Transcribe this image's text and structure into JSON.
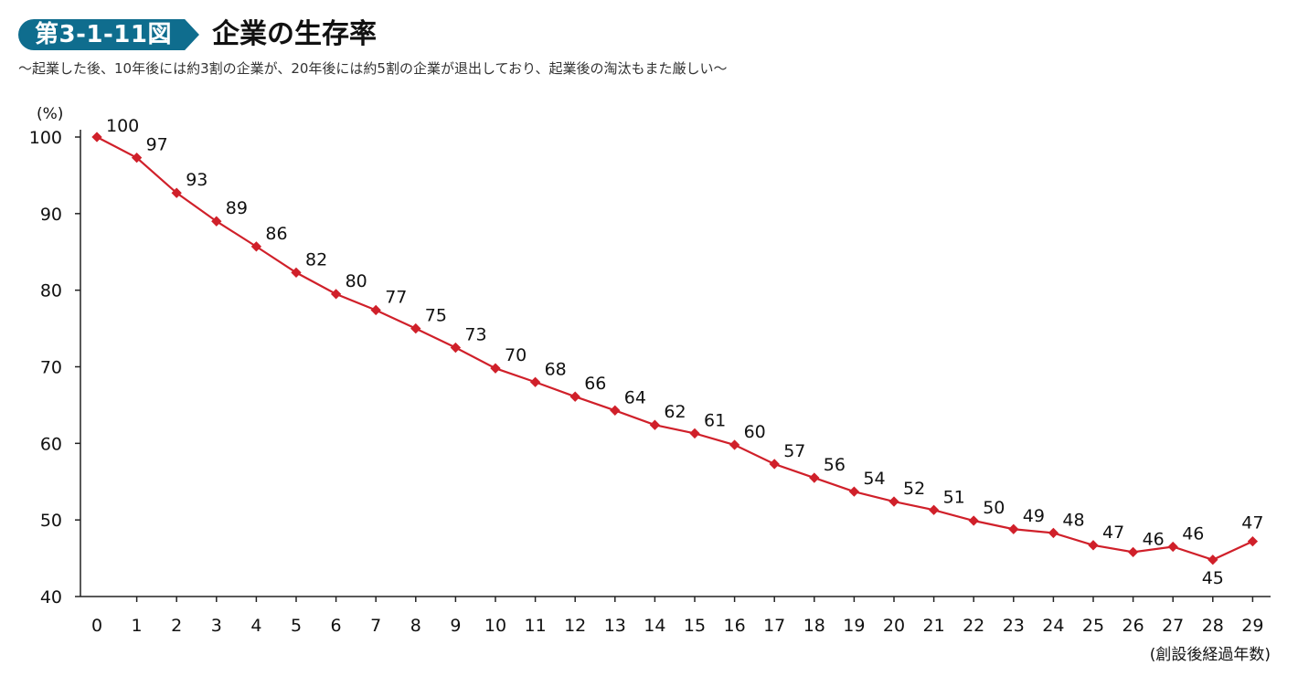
{
  "figure": {
    "number": "第3-1-11図",
    "title": "企業の生存率",
    "subtitle": "～起業した後、10年後には約3割の企業が、20年後には約5割の企業が退出しており、起業後の淘汰もまた厳しい～"
  },
  "colors": {
    "badge": "#0f6d8e",
    "series": "#d0202a",
    "axis": "#222222"
  },
  "chart_data": {
    "type": "line",
    "title": "企業の生存率",
    "ylabel": "(%)",
    "xlabel": "(創設後経過年数)",
    "ylim": [
      40,
      100
    ],
    "y_ticks": [
      40,
      50,
      60,
      70,
      80,
      90,
      100
    ],
    "grid": false,
    "x": [
      0,
      1,
      2,
      3,
      4,
      5,
      6,
      7,
      8,
      9,
      10,
      11,
      12,
      13,
      14,
      15,
      16,
      17,
      18,
      19,
      20,
      21,
      22,
      23,
      24,
      25,
      26,
      27,
      28,
      29
    ],
    "series": [
      {
        "values": [
          100,
          97.3,
          92.7,
          89.0,
          85.7,
          82.3,
          79.5,
          77.4,
          75.0,
          72.5,
          69.8,
          68.0,
          66.1,
          64.3,
          62.4,
          61.3,
          59.8,
          57.3,
          55.5,
          53.7,
          52.4,
          51.3,
          49.9,
          48.8,
          48.3,
          46.7,
          45.8,
          46.5,
          44.8,
          47.2
        ],
        "labels": [
          "100",
          "97",
          "93",
          "89",
          "86",
          "82",
          "80",
          "77",
          "75",
          "73",
          "70",
          "68",
          "66",
          "64",
          "62",
          "61",
          "60",
          "57",
          "56",
          "54",
          "52",
          "51",
          "50",
          "49",
          "48",
          "47",
          "46",
          "46",
          "45",
          "47"
        ]
      }
    ]
  }
}
